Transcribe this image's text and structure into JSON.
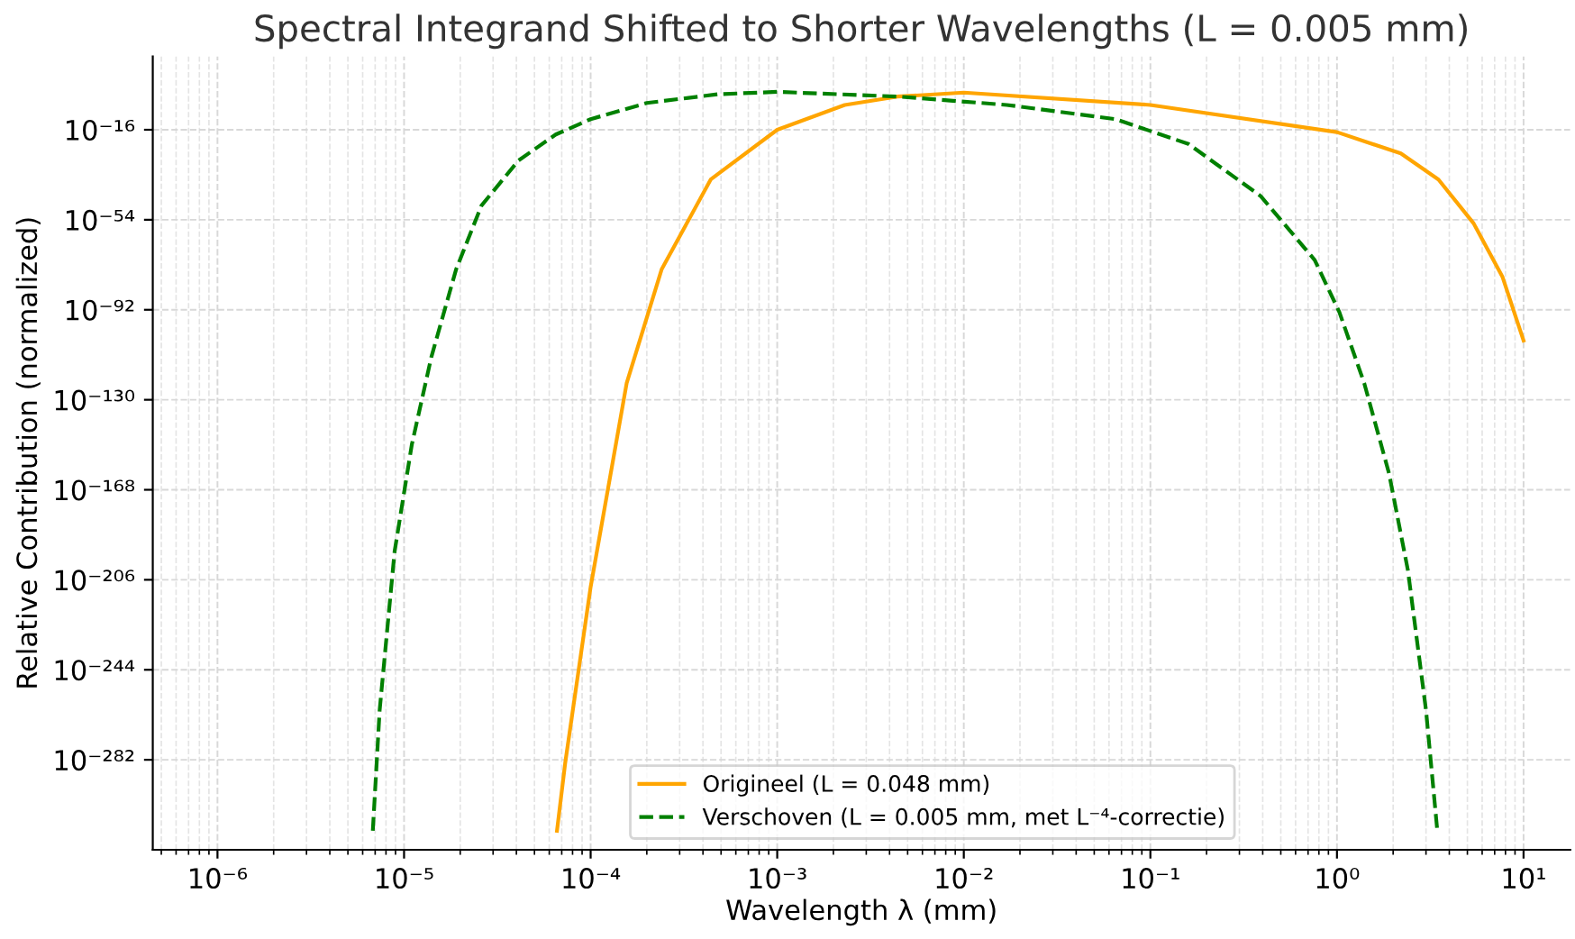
{
  "chart_data": {
    "type": "line",
    "title": "Spectral Integrand Shifted to Shorter Wavelengths (L = 0.005 mm)",
    "xlabel": "Wavelength λ (mm)",
    "ylabel": "Relative Contribution (normalized)",
    "log": "xy",
    "grid": true,
    "legend": "bottom",
    "xlim": [
      4.5e-07,
      17.8
    ],
    "ylim": [
      1e-320,
      1000000000000000.0
    ],
    "xticks": [
      {
        "value": 1e-06,
        "label": "10⁻⁶"
      },
      {
        "value": 1e-05,
        "label": "10⁻⁵"
      },
      {
        "value": 0.0001,
        "label": "10⁻⁴"
      },
      {
        "value": 0.001,
        "label": "10⁻³"
      },
      {
        "value": 0.01,
        "label": "10⁻²"
      },
      {
        "value": 0.1,
        "label": "10⁻¹"
      },
      {
        "value": 1,
        "label": "10⁰"
      },
      {
        "value": 10,
        "label": "10¹"
      }
    ],
    "yticks": [
      {
        "value": 1e-16,
        "label": "10⁻¹⁶"
      },
      {
        "value": 1e-54,
        "label": "10⁻⁵⁴"
      },
      {
        "value": 1e-92,
        "label": "10⁻⁹²"
      },
      {
        "value": 1e-130,
        "label": "10⁻¹³⁰"
      },
      {
        "value": 1e-168,
        "label": "10⁻¹⁶⁸"
      },
      {
        "value": 1e-206,
        "label": "10⁻²⁰⁶"
      },
      {
        "value": 1e-244,
        "label": "10⁻²⁴⁴"
      },
      {
        "value": 1e-282,
        "label": "10⁻²⁸²"
      }
    ],
    "series": [
      {
        "name": "Origineel (L = 0.048 mm)",
        "color": "#ffa500",
        "line_style": "solid",
        "x": [
          6.6e-05,
          7.3e-05,
          0.0001,
          0.000156,
          0.00024,
          0.00044,
          0.001,
          0.0023,
          0.0044,
          0.01,
          0.1,
          1,
          2.2,
          3.5,
          5.4,
          7.7,
          10
        ],
        "values": [
          1e-312,
          3e-284,
          1e-209,
          1e-123,
          1e-75,
          1e-37,
          1e-16,
          3e-06,
          0.01,
          0.5,
          3e-06,
          1e-17,
          1e-26,
          1e-37,
          3e-56,
          1e-78,
          1e-105
        ]
      },
      {
        "name": "Verschoven (L = 0.005 mm, met L⁻⁴-correctie)",
        "color": "#008000",
        "line_style": "dashed",
        "x": [
          6.8e-06,
          7.4e-06,
          8.9e-06,
          1.1e-05,
          1.4e-05,
          1.9e-05,
          2.6e-05,
          4.1e-05,
          6.5e-05,
          0.0001,
          0.0002,
          0.00048,
          0.001,
          0.0045,
          0.017,
          0.065,
          0.16,
          0.39,
          0.76,
          1.03,
          1.4,
          1.9,
          2.4,
          3.0,
          3.45
        ],
        "values": [
          1e-312,
          1e-261,
          1e-194,
          1e-149,
          1e-112,
          1e-75,
          1e-48,
          1e-29,
          1e-18,
          3e-12,
          2e-05,
          0.1,
          1,
          0.01,
          3e-06,
          3e-12,
          1e-22,
          1e-44,
          1e-71,
          1e-93,
          1e-123,
          1e-161,
          1e-202,
          1e-261,
          1e-312
        ]
      }
    ]
  }
}
